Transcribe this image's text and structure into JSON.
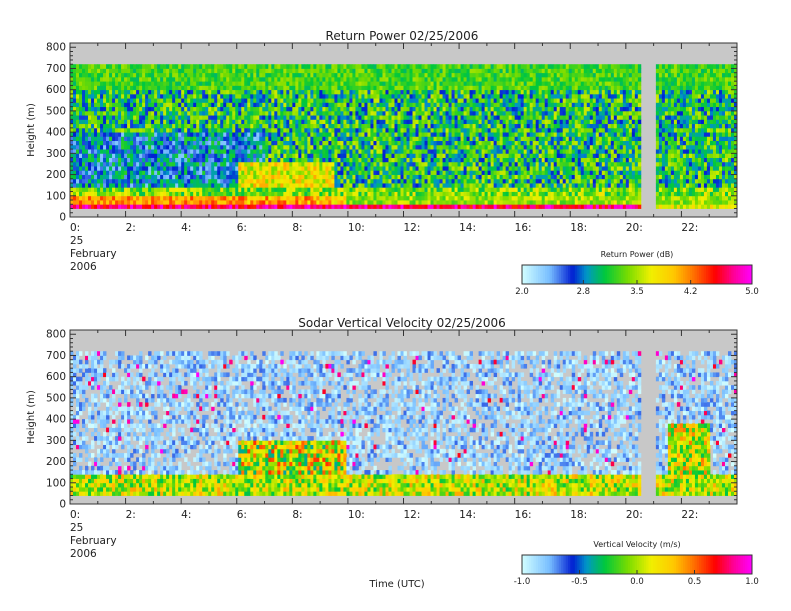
{
  "chart_data": [
    {
      "type": "heatmap",
      "title": "Return Power 02/25/2006",
      "ylabel": "Height (m)",
      "xlabel": "",
      "xlim": [
        0,
        24
      ],
      "ylim": [
        0,
        820
      ],
      "x_ticks": [
        0,
        2,
        4,
        6,
        8,
        10,
        12,
        14,
        16,
        18,
        20,
        22
      ],
      "x_tick_labels": [
        "0:",
        "2:",
        "4:",
        "6:",
        "8:",
        "10:",
        "12:",
        "14:",
        "16:",
        "18:",
        "20:",
        "22:"
      ],
      "y_ticks": [
        0,
        100,
        200,
        300,
        400,
        500,
        600,
        700,
        800
      ],
      "y_tick_labels": [
        "0",
        "100",
        "200",
        "300",
        "400",
        "500",
        "600",
        "700",
        "800"
      ],
      "date_label": [
        "25",
        "February",
        "2006"
      ],
      "data_top_height": 720,
      "missing_data_intervals_hours": [
        [
          20.55,
          21.1
        ]
      ],
      "colorbar": {
        "title": "Return Power (dB)",
        "range": [
          2.0,
          5.0
        ],
        "ticks": [
          2.0,
          2.8,
          3.5,
          4.2,
          5.0
        ],
        "tick_labels": [
          "2.0",
          "2.8",
          "3.5",
          "4.2",
          "5.0"
        ],
        "missing_color": "#c8c8c8"
      },
      "layers_description": [
        {
          "height_range": [
            40,
            60
          ],
          "hours": [
            0,
            20.5
          ],
          "value": 4.6
        },
        {
          "height_range": [
            60,
            100
          ],
          "hours": [
            0,
            6
          ],
          "value": 4.0
        },
        {
          "height_range": [
            100,
            700
          ],
          "hours": [
            0,
            24
          ],
          "value": 3.0
        }
      ]
    },
    {
      "type": "heatmap",
      "title": "Sodar Vertical Velocity 02/25/2006",
      "ylabel": "Height (m)",
      "xlabel": "Time (UTC)",
      "xlim": [
        0,
        24
      ],
      "ylim": [
        0,
        820
      ],
      "x_ticks": [
        0,
        2,
        4,
        6,
        8,
        10,
        12,
        14,
        16,
        18,
        20,
        22
      ],
      "x_tick_labels": [
        "0:",
        "2:",
        "4:",
        "6:",
        "8:",
        "10:",
        "12:",
        "14:",
        "16:",
        "18:",
        "20:",
        "22:"
      ],
      "y_ticks": [
        0,
        100,
        200,
        300,
        400,
        500,
        600,
        700,
        800
      ],
      "y_tick_labels": [
        "0",
        "100",
        "200",
        "300",
        "400",
        "500",
        "600",
        "700",
        "800"
      ],
      "date_label": [
        "25",
        "February",
        "2006"
      ],
      "data_top_height": 720,
      "missing_data_intervals_hours": [
        [
          20.55,
          21.1
        ]
      ],
      "colorbar": {
        "title": "Vertical Velocity (m/s)",
        "range": [
          -1.0,
          1.0
        ],
        "ticks": [
          -1.0,
          -0.5,
          0.0,
          0.5,
          1.0
        ],
        "tick_labels": [
          "-1.0",
          "-0.5",
          "0.0",
          "0.5",
          "1.0"
        ],
        "missing_color": "#c8c8c8"
      },
      "layers_description": [
        {
          "height_range": [
            40,
            150
          ],
          "hours": [
            0,
            24
          ],
          "value": 0.1
        },
        {
          "height_range": [
            150,
            300
          ],
          "hours": [
            6,
            10
          ],
          "value": 0.2
        },
        {
          "height_range": [
            150,
            700
          ],
          "hours": [
            0,
            24
          ],
          "value": -0.8
        }
      ]
    }
  ]
}
